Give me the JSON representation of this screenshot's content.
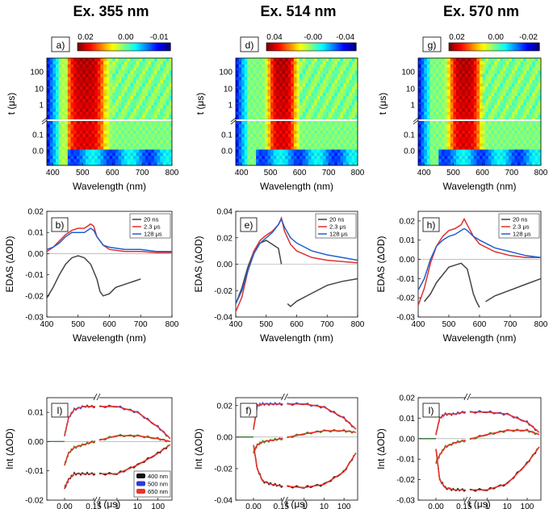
{
  "chart_data": {
    "type": "figure",
    "columns": [
      {
        "title": "Ex. 355 nm",
        "map": {
          "label": "a)",
          "colorbar_ticks": [
            "0.02",
            "0.00",
            "-0.01"
          ],
          "xlabel": "Wavelength (nm)",
          "ylabel": "t (μs)",
          "xticks": [
            "400",
            "500",
            "600",
            "700",
            "800"
          ],
          "yticks": [
            "100",
            "10",
            "1",
            "0.1",
            "0.0"
          ],
          "hot_center_nm": 510,
          "hot_width_nm": 110
        },
        "edas": {
          "label": "b)",
          "xlabel": "Wavelength (nm)",
          "ylabel": "EDAS (ΔOD)",
          "xticks": [
            "400",
            "500",
            "600",
            "700",
            "800"
          ],
          "yticks": [
            "0.02",
            "0.01",
            "0.00",
            "-0.01",
            "-0.02",
            "-0.03"
          ],
          "xlim": [
            400,
            800
          ],
          "ylim": [
            -0.03,
            0.02
          ],
          "legend": [
            "20 ns",
            "2.3 μs",
            "128 μs"
          ],
          "series": [
            {
              "name": "20 ns",
              "color": "#444444",
              "x": [
                400,
                420,
                440,
                460,
                480,
                500,
                520,
                540,
                560,
                570,
                580,
                600,
                620,
                640,
                660,
                680,
                700
              ],
              "y": [
                -0.021,
                -0.016,
                -0.01,
                -0.005,
                -0.002,
                -0.001,
                -0.002,
                -0.005,
                -0.012,
                -0.018,
                -0.02,
                -0.019,
                -0.016,
                -0.015,
                -0.014,
                -0.013,
                -0.012
              ]
            },
            {
              "name": "2.3 μs",
              "color": "#e03030",
              "x": [
                400,
                420,
                440,
                460,
                480,
                500,
                520,
                540,
                550,
                560,
                580,
                600,
                650,
                700,
                750,
                800
              ],
              "y": [
                0.001,
                0.003,
                0.006,
                0.009,
                0.011,
                0.012,
                0.012,
                0.014,
                0.013,
                0.008,
                0.004,
                0.002,
                0.001,
                0.001,
                0.0005,
                0.0005
              ]
            },
            {
              "name": "128 μs",
              "color": "#2060d0",
              "x": [
                400,
                420,
                440,
                460,
                480,
                500,
                520,
                540,
                550,
                560,
                580,
                600,
                650,
                700,
                750,
                800
              ],
              "y": [
                0.002,
                0.003,
                0.005,
                0.008,
                0.01,
                0.01,
                0.01,
                0.012,
                0.011,
                0.008,
                0.004,
                0.003,
                0.002,
                0.002,
                0.001,
                0.001
              ]
            }
          ]
        },
        "kinetics": {
          "label": "l)",
          "xlabel": "t (μs)",
          "ylabel": "Int (ΔOD)",
          "xticks": [
            "0.00",
            "0.15",
            "1",
            "10",
            "100"
          ],
          "yticks": [
            "0.01",
            "0.00",
            "-0.01",
            "-0.02"
          ],
          "ylim": [
            -0.02,
            0.015
          ],
          "legend": [
            "400 nm",
            "500 nm",
            "650 nm"
          ],
          "trace_400": {
            "x": [
              0,
              0.02,
              0.05,
              0.1,
              0.15,
              1,
              10,
              100,
              400
            ],
            "y": [
              -0.016,
              -0.013,
              -0.011,
              -0.011,
              -0.011,
              -0.011,
              -0.008,
              -0.004,
              -0.001
            ]
          },
          "trace_500": {
            "x": [
              0,
              0.02,
              0.05,
              0.1,
              0.15,
              1,
              10,
              100,
              400
            ],
            "y": [
              0.002,
              0.008,
              0.011,
              0.012,
              0.012,
              0.012,
              0.01,
              0.005,
              0.001
            ]
          },
          "trace_650": {
            "x": [
              0,
              0.02,
              0.05,
              0.1,
              0.15,
              1,
              10,
              100,
              400
            ],
            "y": [
              -0.008,
              -0.004,
              -0.002,
              -0.001,
              0,
              0.002,
              0.002,
              0.001,
              0
            ]
          }
        }
      },
      {
        "title": "Ex. 514 nm",
        "map": {
          "label": "d)",
          "colorbar_ticks": [
            "0.04",
            "-0.00",
            "-0.04"
          ],
          "xlabel": "Wavelength (nm)",
          "ylabel": "t (μs)",
          "xticks": [
            "400",
            "500",
            "600",
            "700",
            "800"
          ],
          "yticks": [
            "100",
            "10",
            "1",
            "0.1",
            "0.0"
          ],
          "hot_center_nm": 540,
          "hot_width_nm": 80
        },
        "edas": {
          "label": "e)",
          "xlabel": "Wavelength (nm)",
          "ylabel": "EDAS (ΔOD)",
          "xticks": [
            "400",
            "500",
            "600",
            "700",
            "800"
          ],
          "yticks": [
            "0.04",
            "0.02",
            "0.00",
            "-0.02",
            "-0.04"
          ],
          "xlim": [
            400,
            800
          ],
          "ylim": [
            -0.04,
            0.04
          ],
          "legend": [
            "20 ns",
            "2.3 μs",
            "128 μs"
          ],
          "series": [
            {
              "name": "20 ns",
              "color": "#444444",
              "x": [
                400,
                420,
                440,
                460,
                480,
                500,
                520,
                540,
                550
              ],
              "y": [
                -0.03,
                -0.018,
                -0.002,
                0.01,
                0.016,
                0.018,
                0.015,
                0.012,
                0.0
              ]
            },
            {
              "name": "20 ns b",
              "color": "#444444",
              "x": [
                570,
                580,
                600,
                650,
                700,
                750,
                800
              ],
              "y": [
                -0.03,
                -0.032,
                -0.028,
                -0.022,
                -0.016,
                -0.013,
                -0.011
              ]
            },
            {
              "name": "2.3 μs",
              "color": "#e03030",
              "x": [
                400,
                420,
                440,
                460,
                480,
                500,
                520,
                540,
                550,
                560,
                580,
                600,
                650,
                700,
                750,
                800
              ],
              "y": [
                -0.036,
                -0.025,
                -0.005,
                0.01,
                0.018,
                0.022,
                0.025,
                0.03,
                0.035,
                0.025,
                0.015,
                0.01,
                0.005,
                0.003,
                0.002,
                0.001
              ]
            },
            {
              "name": "128 μs",
              "color": "#2060d0",
              "x": [
                400,
                420,
                440,
                460,
                480,
                500,
                520,
                540,
                550,
                560,
                580,
                600,
                650,
                700,
                750,
                800
              ],
              "y": [
                -0.03,
                -0.02,
                -0.005,
                0.008,
                0.016,
                0.02,
                0.024,
                0.03,
                0.034,
                0.028,
                0.02,
                0.016,
                0.01,
                0.007,
                0.005,
                0.003
              ]
            }
          ]
        },
        "kinetics": {
          "label": "f)",
          "xlabel": "t (μs)",
          "ylabel": "Int (ΔOD)",
          "xticks": [
            "0.00",
            "0.15",
            "1",
            "10",
            "100"
          ],
          "yticks": [
            "0.02",
            "0.00",
            "-0.02",
            "-0.04"
          ],
          "ylim": [
            -0.04,
            0.025
          ],
          "trace_400": {
            "x": [
              0,
              0.02,
              0.05,
              0.1,
              0.15,
              1,
              10,
              100,
              400
            ],
            "y": [
              -0.005,
              -0.02,
              -0.028,
              -0.03,
              -0.031,
              -0.032,
              -0.03,
              -0.022,
              -0.01
            ]
          },
          "trace_500": {
            "x": [
              0,
              0.02,
              0.05,
              0.1,
              0.15,
              1,
              10,
              100,
              400
            ],
            "y": [
              0.005,
              0.02,
              0.021,
              0.021,
              0.021,
              0.021,
              0.019,
              0.012,
              0.005
            ]
          },
          "trace_650": {
            "x": [
              0,
              0.02,
              0.05,
              0.1,
              0.15,
              1,
              10,
              100,
              400
            ],
            "y": [
              -0.01,
              -0.005,
              -0.003,
              -0.002,
              -0.001,
              0.002,
              0.004,
              0.004,
              0.003
            ]
          }
        }
      },
      {
        "title": "Ex. 570 nm",
        "map": {
          "label": "g)",
          "colorbar_ticks": [
            "0.02",
            "0.00",
            "-0.02"
          ],
          "xlabel": "Wavelength (nm)",
          "ylabel": "t (μs)",
          "xticks": [
            "400",
            "500",
            "600",
            "700",
            "800"
          ],
          "yticks": [
            "100",
            "10",
            "1",
            "0.1",
            "0.0"
          ],
          "hot_center_nm": 540,
          "hot_width_nm": 90
        },
        "edas": {
          "label": "h)",
          "xlabel": "Wavelength (nm)",
          "ylabel": "EDAS (ΔOD)",
          "xticks": [
            "400",
            "500",
            "600",
            "700",
            "800"
          ],
          "yticks": [
            "0.02",
            "0.01",
            "0.00",
            "-0.01",
            "-0.02",
            "-0.03"
          ],
          "xlim": [
            400,
            800
          ],
          "ylim": [
            -0.03,
            0.025
          ],
          "legend": [
            "20 ns",
            "2.3 μs",
            "128 μs"
          ],
          "series": [
            {
              "name": "20 ns",
              "color": "#444444",
              "x": [
                420,
                440,
                460,
                480,
                500,
                520,
                540,
                560,
                580,
                590,
                600
              ],
              "y": [
                -0.022,
                -0.018,
                -0.012,
                -0.008,
                -0.004,
                -0.003,
                -0.002,
                -0.005,
                -0.018,
                -0.022,
                -0.025
              ]
            },
            {
              "name": "20 ns b",
              "color": "#444444",
              "x": [
                620,
                650,
                700,
                750,
                800
              ],
              "y": [
                -0.022,
                -0.019,
                -0.016,
                -0.013,
                -0.01
              ]
            },
            {
              "name": "2.3 μs",
              "color": "#e03030",
              "x": [
                400,
                420,
                440,
                460,
                480,
                500,
                520,
                540,
                550,
                560,
                580,
                600,
                650,
                700,
                750,
                800
              ],
              "y": [
                -0.024,
                -0.015,
                -0.002,
                0.007,
                0.012,
                0.015,
                0.016,
                0.018,
                0.021,
                0.018,
                0.012,
                0.008,
                0.004,
                0.002,
                0.001,
                0.001
              ]
            },
            {
              "name": "128 μs",
              "color": "#2060d0",
              "x": [
                400,
                420,
                440,
                460,
                480,
                500,
                520,
                540,
                550,
                560,
                580,
                600,
                650,
                700,
                750,
                800
              ],
              "y": [
                -0.016,
                -0.01,
                0.0,
                0.007,
                0.01,
                0.012,
                0.013,
                0.015,
                0.016,
                0.015,
                0.012,
                0.01,
                0.006,
                0.004,
                0.002,
                0.001
              ]
            }
          ]
        },
        "kinetics": {
          "label": "l)",
          "xlabel": "t (μs)",
          "ylabel": "Int (ΔOD)",
          "xticks": [
            "0.00",
            "0.15",
            "1",
            "10",
            "100"
          ],
          "yticks": [
            "0.02",
            "0.01",
            "0.00",
            "-0.01",
            "-0.02",
            "-0.03"
          ],
          "ylim": [
            -0.03,
            0.02
          ],
          "trace_400": {
            "x": [
              0,
              0.02,
              0.05,
              0.1,
              0.15,
              1,
              10,
              100,
              400
            ],
            "y": [
              -0.005,
              -0.02,
              -0.024,
              -0.025,
              -0.025,
              -0.025,
              -0.022,
              -0.012,
              -0.004
            ]
          },
          "trace_500": {
            "x": [
              0,
              0.02,
              0.05,
              0.1,
              0.15,
              1,
              10,
              100,
              400
            ],
            "y": [
              0.002,
              0.01,
              0.012,
              0.012,
              0.013,
              0.013,
              0.012,
              0.008,
              0.003
            ]
          },
          "trace_650": {
            "x": [
              0,
              0.02,
              0.05,
              0.1,
              0.15,
              1,
              10,
              100,
              400
            ],
            "y": [
              -0.012,
              -0.008,
              -0.004,
              -0.002,
              -0.001,
              0.002,
              0.004,
              0.004,
              0.002
            ]
          }
        }
      }
    ]
  },
  "colors": {
    "fit": "#e8332a",
    "black": "#111111",
    "blue": "#2d3ad6",
    "green": "#3a8a1a"
  }
}
